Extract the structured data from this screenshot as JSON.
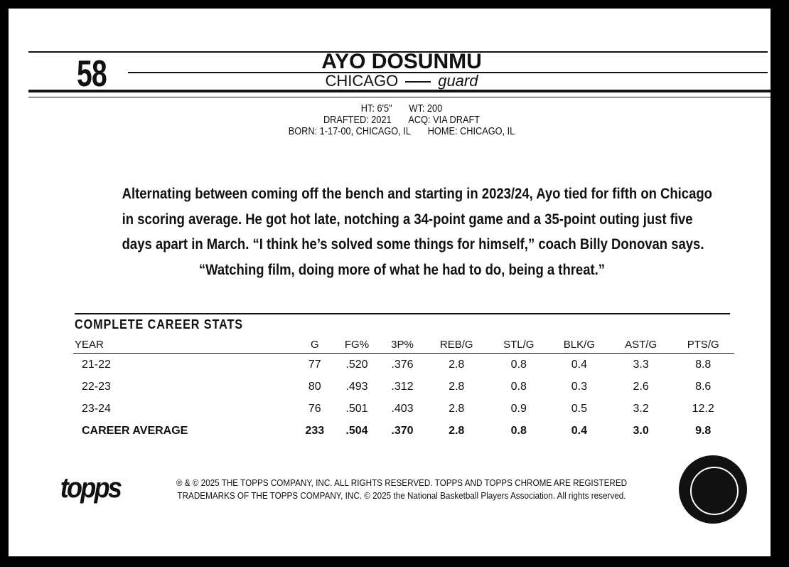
{
  "card": {
    "number": "58",
    "player_name": "AYO DOSUNMU",
    "team": "CHICAGO",
    "position": "guard",
    "info": {
      "height": "HT: 6'5\"",
      "weight": "WT: 200",
      "drafted": "DRAFTED: 2021",
      "acquired": "ACQ: VIA DRAFT",
      "born": "BORN: 1-17-00, CHICAGO, IL",
      "home": "HOME: CHICAGO, IL"
    },
    "bio": [
      "Alternating between coming off the bench and starting in 2023/24, Ayo tied for fifth on Chicago",
      "in scoring average. He got hot late, notching a 34-point game and a 35-point outing just five",
      "days apart in March. “I think he’s solved some things for himself,” coach Billy Donovan says.",
      "“Watching film, doing more of what he had to do, being a threat.”"
    ]
  },
  "stats": {
    "title": "COMPLETE CAREER STATS",
    "headers": [
      "YEAR",
      "G",
      "FG%",
      "3P%",
      "REB/G",
      "STL/G",
      "BLK/G",
      "AST/G",
      "PTS/G"
    ],
    "rows": [
      [
        "21-22",
        "77",
        ".520",
        ".376",
        "2.8",
        "0.8",
        "0.4",
        "3.3",
        "8.8"
      ],
      [
        "22-23",
        "80",
        ".493",
        ".312",
        "2.8",
        "0.8",
        "0.3",
        "2.6",
        "8.6"
      ],
      [
        "23-24",
        "76",
        ".501",
        ".403",
        "2.8",
        "0.9",
        "0.5",
        "3.2",
        "12.2"
      ],
      [
        "CAREER AVERAGE",
        "233",
        ".504",
        ".370",
        "2.8",
        "0.8",
        "0.4",
        "3.0",
        "9.8"
      ]
    ]
  },
  "footer": {
    "logo": "topps",
    "legal": [
      "® & © 2025 THE TOPPS COMPANY, INC. ALL RIGHTS RESERVED. TOPPS AND TOPPS CHROME ARE REGISTERED",
      "TRADEMARKS OF THE TOPPS COMPANY, INC. © 2025 the National Basketball Players Association. All rights reserved."
    ],
    "badge_logo": "nbpa-basketball-logo"
  }
}
